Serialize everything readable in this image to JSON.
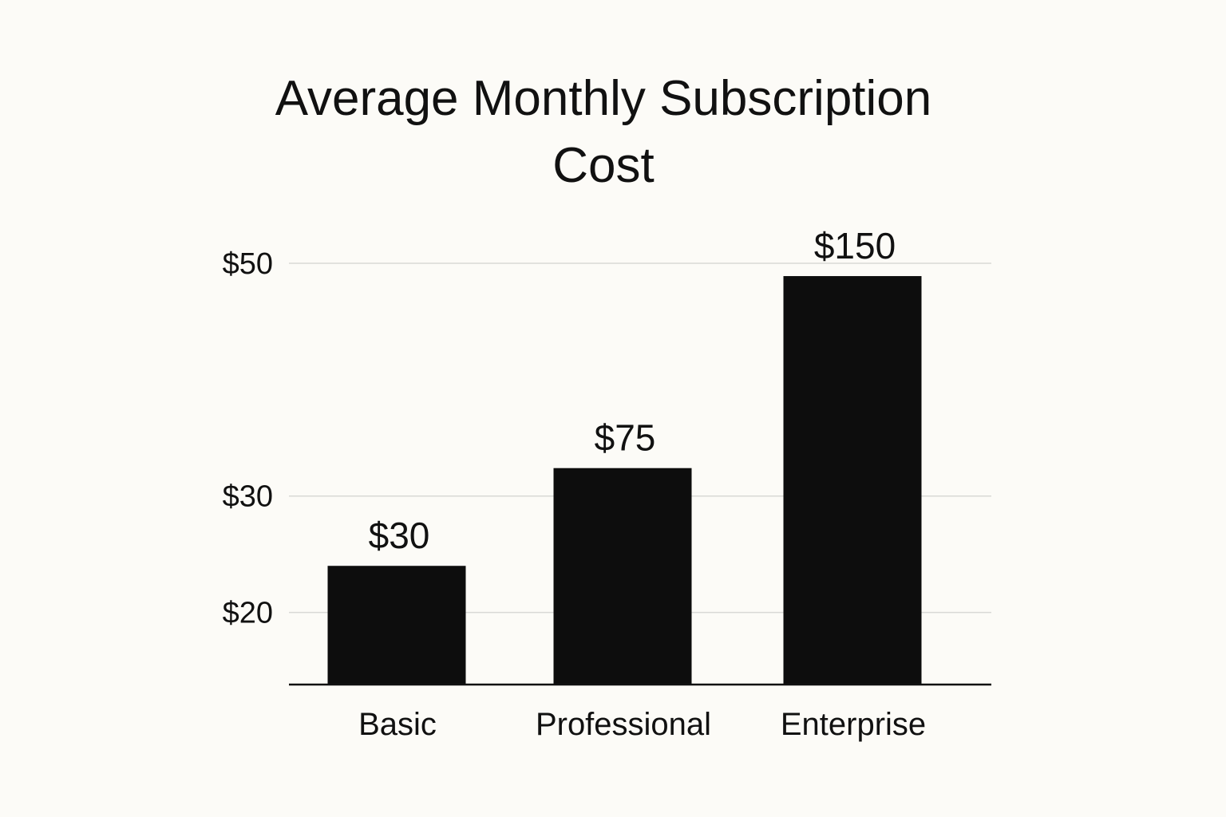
{
  "chart_data": {
    "type": "bar",
    "title_lines": [
      "Average Monthly Subscription",
      "Cost"
    ],
    "categories": [
      "Basic",
      "Professional",
      "Enterprise"
    ],
    "values": [
      30,
      75,
      150
    ],
    "value_labels": [
      "$30",
      "$75",
      "$150"
    ],
    "bar_heights_on_axis": [
      24,
      32.4,
      48.9
    ],
    "y_ticks": [
      {
        "value": 20,
        "label": "$20"
      },
      {
        "value": 30,
        "label": "$30"
      },
      {
        "value": 50,
        "label": "$50"
      }
    ],
    "ylim": [
      13.8,
      50
    ],
    "xlabel": "",
    "ylabel": "",
    "grid": true,
    "legend": "none",
    "colors": {
      "bar": "#0d0d0d",
      "grid": "#d9d9d6",
      "axis": "#111111",
      "background": "#fcfbf7"
    }
  }
}
